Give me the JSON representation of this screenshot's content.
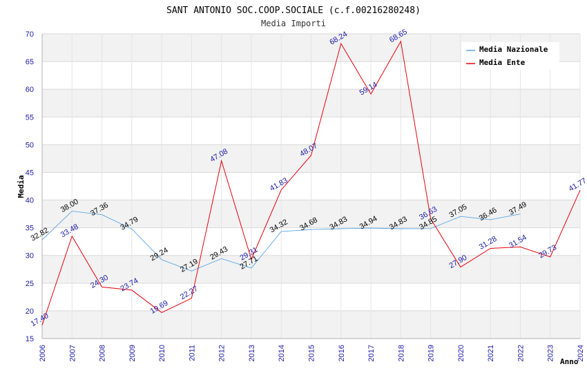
{
  "chart_data": {
    "type": "line",
    "title": "SANT ANTONIO SOC.COOP.SOCIALE (c.f.00216280248)",
    "subtitle": "Media Importi",
    "xlabel": "Anno",
    "ylabel": "Media",
    "ylim": [
      15,
      70
    ],
    "yticks": [
      "15",
      "20",
      "25",
      "30",
      "35",
      "40",
      "45",
      "50",
      "55",
      "60",
      "65",
      "70"
    ],
    "categories": [
      "2006",
      "2007",
      "2008",
      "2009",
      "2010",
      "2011",
      "2012",
      "2013",
      "2014",
      "2015",
      "2016",
      "2017",
      "2018",
      "2019",
      "2020",
      "2021",
      "2022",
      "2023",
      "2024"
    ],
    "legend_position": "top-right",
    "series": [
      {
        "name": "Media Nazionale",
        "color": "#5aa5e6",
        "label_color": "#000000",
        "values": [
          32.82,
          38.0,
          37.36,
          34.79,
          29.24,
          27.19,
          29.43,
          27.71,
          34.32,
          34.68,
          34.83,
          34.94,
          34.83,
          34.85,
          37.05,
          36.46,
          37.49,
          null,
          null
        ],
        "labels": [
          "32.82",
          "38.00",
          "37.36",
          "34.79",
          "29.24",
          "27.19",
          "29.43",
          "27.71",
          "34.32",
          "34.68",
          "34.83",
          "34.94",
          "34.83",
          "34.85",
          "37.05",
          "36.46",
          "37.49",
          null,
          null
        ]
      },
      {
        "name": "Media Ente",
        "color": "#e8000b",
        "label_color": "#1a1aa6",
        "values": [
          17.4,
          33.48,
          24.3,
          23.74,
          19.69,
          22.27,
          47.08,
          29.31,
          41.83,
          48.07,
          68.24,
          59.14,
          68.65,
          36.63,
          27.9,
          31.28,
          31.54,
          29.73,
          41.77
        ],
        "labels": [
          "17.40",
          "33.48",
          "24.30",
          "23.74",
          "19.69",
          "22.27",
          "47.08",
          "29.31",
          "41.83",
          "48.07",
          "68.24",
          "59.14",
          "68.65",
          "36.63",
          "27.90",
          "31.28",
          "31.54",
          "29.73",
          "41.77"
        ]
      }
    ]
  }
}
